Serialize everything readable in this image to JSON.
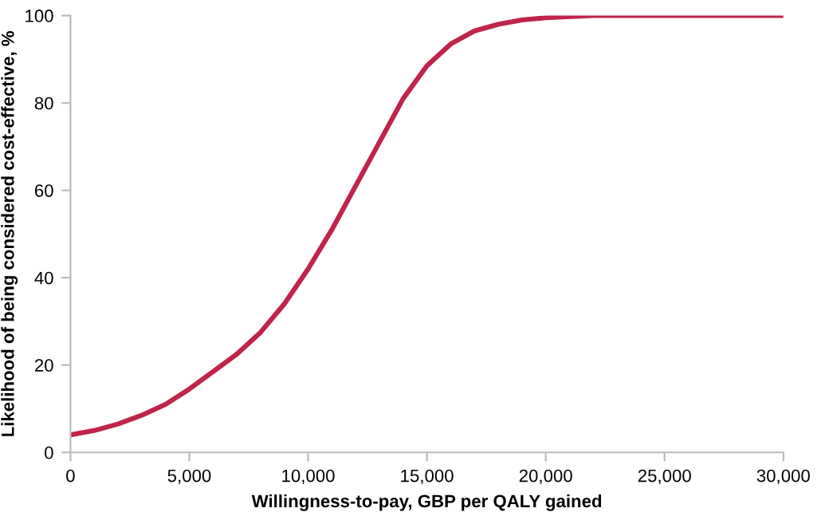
{
  "chart_data": {
    "type": "line",
    "xlabel": "Willingness-to-pay, GBP per QALY gained",
    "ylabel": "Likelihood of being considered cost-effective, %",
    "x": [
      0,
      1000,
      2000,
      3000,
      4000,
      5000,
      6000,
      7000,
      8000,
      9000,
      10000,
      11000,
      12000,
      13000,
      14000,
      15000,
      16000,
      17000,
      18000,
      19000,
      20000,
      22000,
      25000,
      30000
    ],
    "series": [
      {
        "color": "#c0244a",
        "values": [
          4,
          5,
          6.5,
          8.5,
          11,
          14.5,
          18.5,
          22.5,
          27.5,
          34,
          42,
          51,
          61,
          71,
          81,
          88.5,
          93.5,
          96.5,
          98,
          99,
          99.5,
          100,
          100,
          100
        ]
      }
    ],
    "xlim": [
      0,
      30000
    ],
    "ylim": [
      0,
      100
    ],
    "xticks": [
      0,
      {
        "value": 5000,
        "label": "5,000"
      },
      {
        "value": 10000,
        "label": "10,000"
      },
      {
        "value": 15000,
        "label": "15,000"
      },
      {
        "value": 20000,
        "label": "20,000"
      },
      {
        "value": 25000,
        "label": "25,000"
      },
      {
        "value": 30000,
        "label": "30,000"
      }
    ],
    "yticks": [
      0,
      20,
      40,
      60,
      80,
      100
    ],
    "grid": false,
    "marker": "none",
    "line_style": "solid",
    "legend": false
  }
}
